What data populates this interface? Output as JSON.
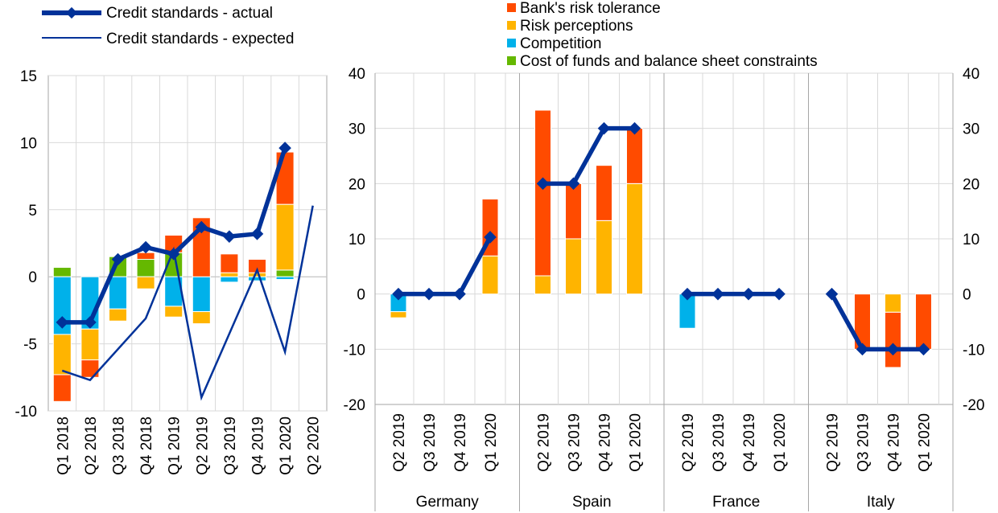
{
  "legend_left": [
    {
      "label": "Credit standards - actual",
      "color": "#003299",
      "style": "thick-diamond"
    },
    {
      "label": "Credit standards - expected",
      "color": "#003299",
      "style": "thin"
    }
  ],
  "legend_right": [
    {
      "label": "Bank's risk tolerance",
      "color": "#FF4B00"
    },
    {
      "label": "Risk perceptions",
      "color": "#FFB400"
    },
    {
      "label": "Competition",
      "color": "#00B1EA"
    },
    {
      "label": "Cost of funds and balance sheet constraints",
      "color": "#65B800"
    }
  ],
  "chart_data": [
    {
      "type": "bar",
      "stacked": true,
      "categories": [
        "Q1 2018",
        "Q2 2018",
        "Q3 2018",
        "Q4 2018",
        "Q1 2019",
        "Q2 2019",
        "Q3 2019",
        "Q4 2019",
        "Q1 2020",
        "Q2 2020"
      ],
      "ylim": [
        -10,
        15
      ],
      "yticks": [
        -10,
        -5,
        0,
        5,
        10,
        15
      ],
      "grid": true,
      "series": [
        {
          "name": "Cost of funds and balance sheet constraints",
          "color": "#65B800",
          "values": [
            0.7,
            0,
            1.5,
            1.3,
            1.8,
            0,
            0,
            0,
            0.5,
            null
          ]
        },
        {
          "name": "Competition",
          "color": "#00B1EA",
          "values": [
            -4.3,
            -3.9,
            -2.4,
            0,
            -2.2,
            -2.6,
            -0.4,
            -0.3,
            -0.2,
            null
          ]
        },
        {
          "name": "Risk perceptions",
          "color": "#FFB400",
          "values": [
            -3.0,
            -2.3,
            -0.9,
            -0.9,
            -0.8,
            -0.9,
            0.3,
            0.3,
            4.9,
            null
          ]
        },
        {
          "name": "Bank's risk tolerance",
          "color": "#FF4B00",
          "values": [
            -2.0,
            -1.3,
            0,
            0.5,
            1.3,
            4.4,
            1.4,
            1.0,
            3.9,
            null
          ]
        }
      ],
      "lines": [
        {
          "name": "Credit standards - actual",
          "values": [
            -3.4,
            -3.4,
            1.3,
            2.2,
            1.7,
            3.7,
            3.0,
            3.2,
            9.6,
            null
          ]
        },
        {
          "name": "Credit standards - expected",
          "values": [
            -7.0,
            -7.7,
            null,
            -3.1,
            2.0,
            -9.0,
            null,
            0.5,
            -5.6,
            5.3
          ]
        }
      ]
    },
    {
      "type": "bar",
      "stacked": true,
      "ylim": [
        -20,
        40
      ],
      "yticks": [
        -20,
        -10,
        0,
        10,
        20,
        30,
        40
      ],
      "grid": true,
      "groups": [
        {
          "name": "Germany",
          "categories": [
            "Q2 2019",
            "Q3 2019",
            "Q4 2019",
            "Q1 2020"
          ],
          "risk_tolerance": [
            0,
            0,
            0,
            10.3
          ],
          "risk_perceptions": [
            -1.1,
            0,
            0,
            6.9
          ],
          "competition": [
            -3.2,
            0,
            0,
            0
          ],
          "cost_of_funds": [
            0,
            0,
            0,
            0
          ],
          "actual": [
            0,
            0,
            0,
            10.3
          ]
        },
        {
          "name": "Spain",
          "categories": [
            "Q2 2019",
            "Q3 2019",
            "Q4 2019",
            "Q1 2020"
          ],
          "risk_tolerance": [
            30.0,
            10.0,
            10.0,
            10.0
          ],
          "risk_perceptions": [
            3.3,
            10.0,
            13.3,
            20.0
          ],
          "competition": [
            0,
            0,
            0,
            0
          ],
          "cost_of_funds": [
            0,
            0,
            0,
            0
          ],
          "actual": [
            20,
            20,
            30,
            30
          ]
        },
        {
          "name": "France",
          "categories": [
            "Q2 2019",
            "Q3 2019",
            "Q4 2019",
            "Q1 2020"
          ],
          "risk_tolerance": [
            0,
            0,
            0,
            0
          ],
          "risk_perceptions": [
            0,
            0,
            0,
            0
          ],
          "competition": [
            -6.2,
            0,
            0,
            0
          ],
          "cost_of_funds": [
            0,
            0,
            0,
            0
          ],
          "actual": [
            0,
            0,
            0,
            0
          ]
        },
        {
          "name": "Italy",
          "categories": [
            "Q2 2019",
            "Q3 2019",
            "Q4 2019",
            "Q1 2020"
          ],
          "risk_tolerance": [
            0,
            -10.0,
            -10.0,
            -10.0
          ],
          "risk_perceptions": [
            0,
            0,
            -3.3,
            0
          ],
          "competition": [
            0,
            0,
            0,
            0
          ],
          "cost_of_funds": [
            0,
            0,
            0,
            0
          ],
          "actual": [
            0,
            -10,
            -10,
            -10
          ]
        }
      ]
    }
  ]
}
